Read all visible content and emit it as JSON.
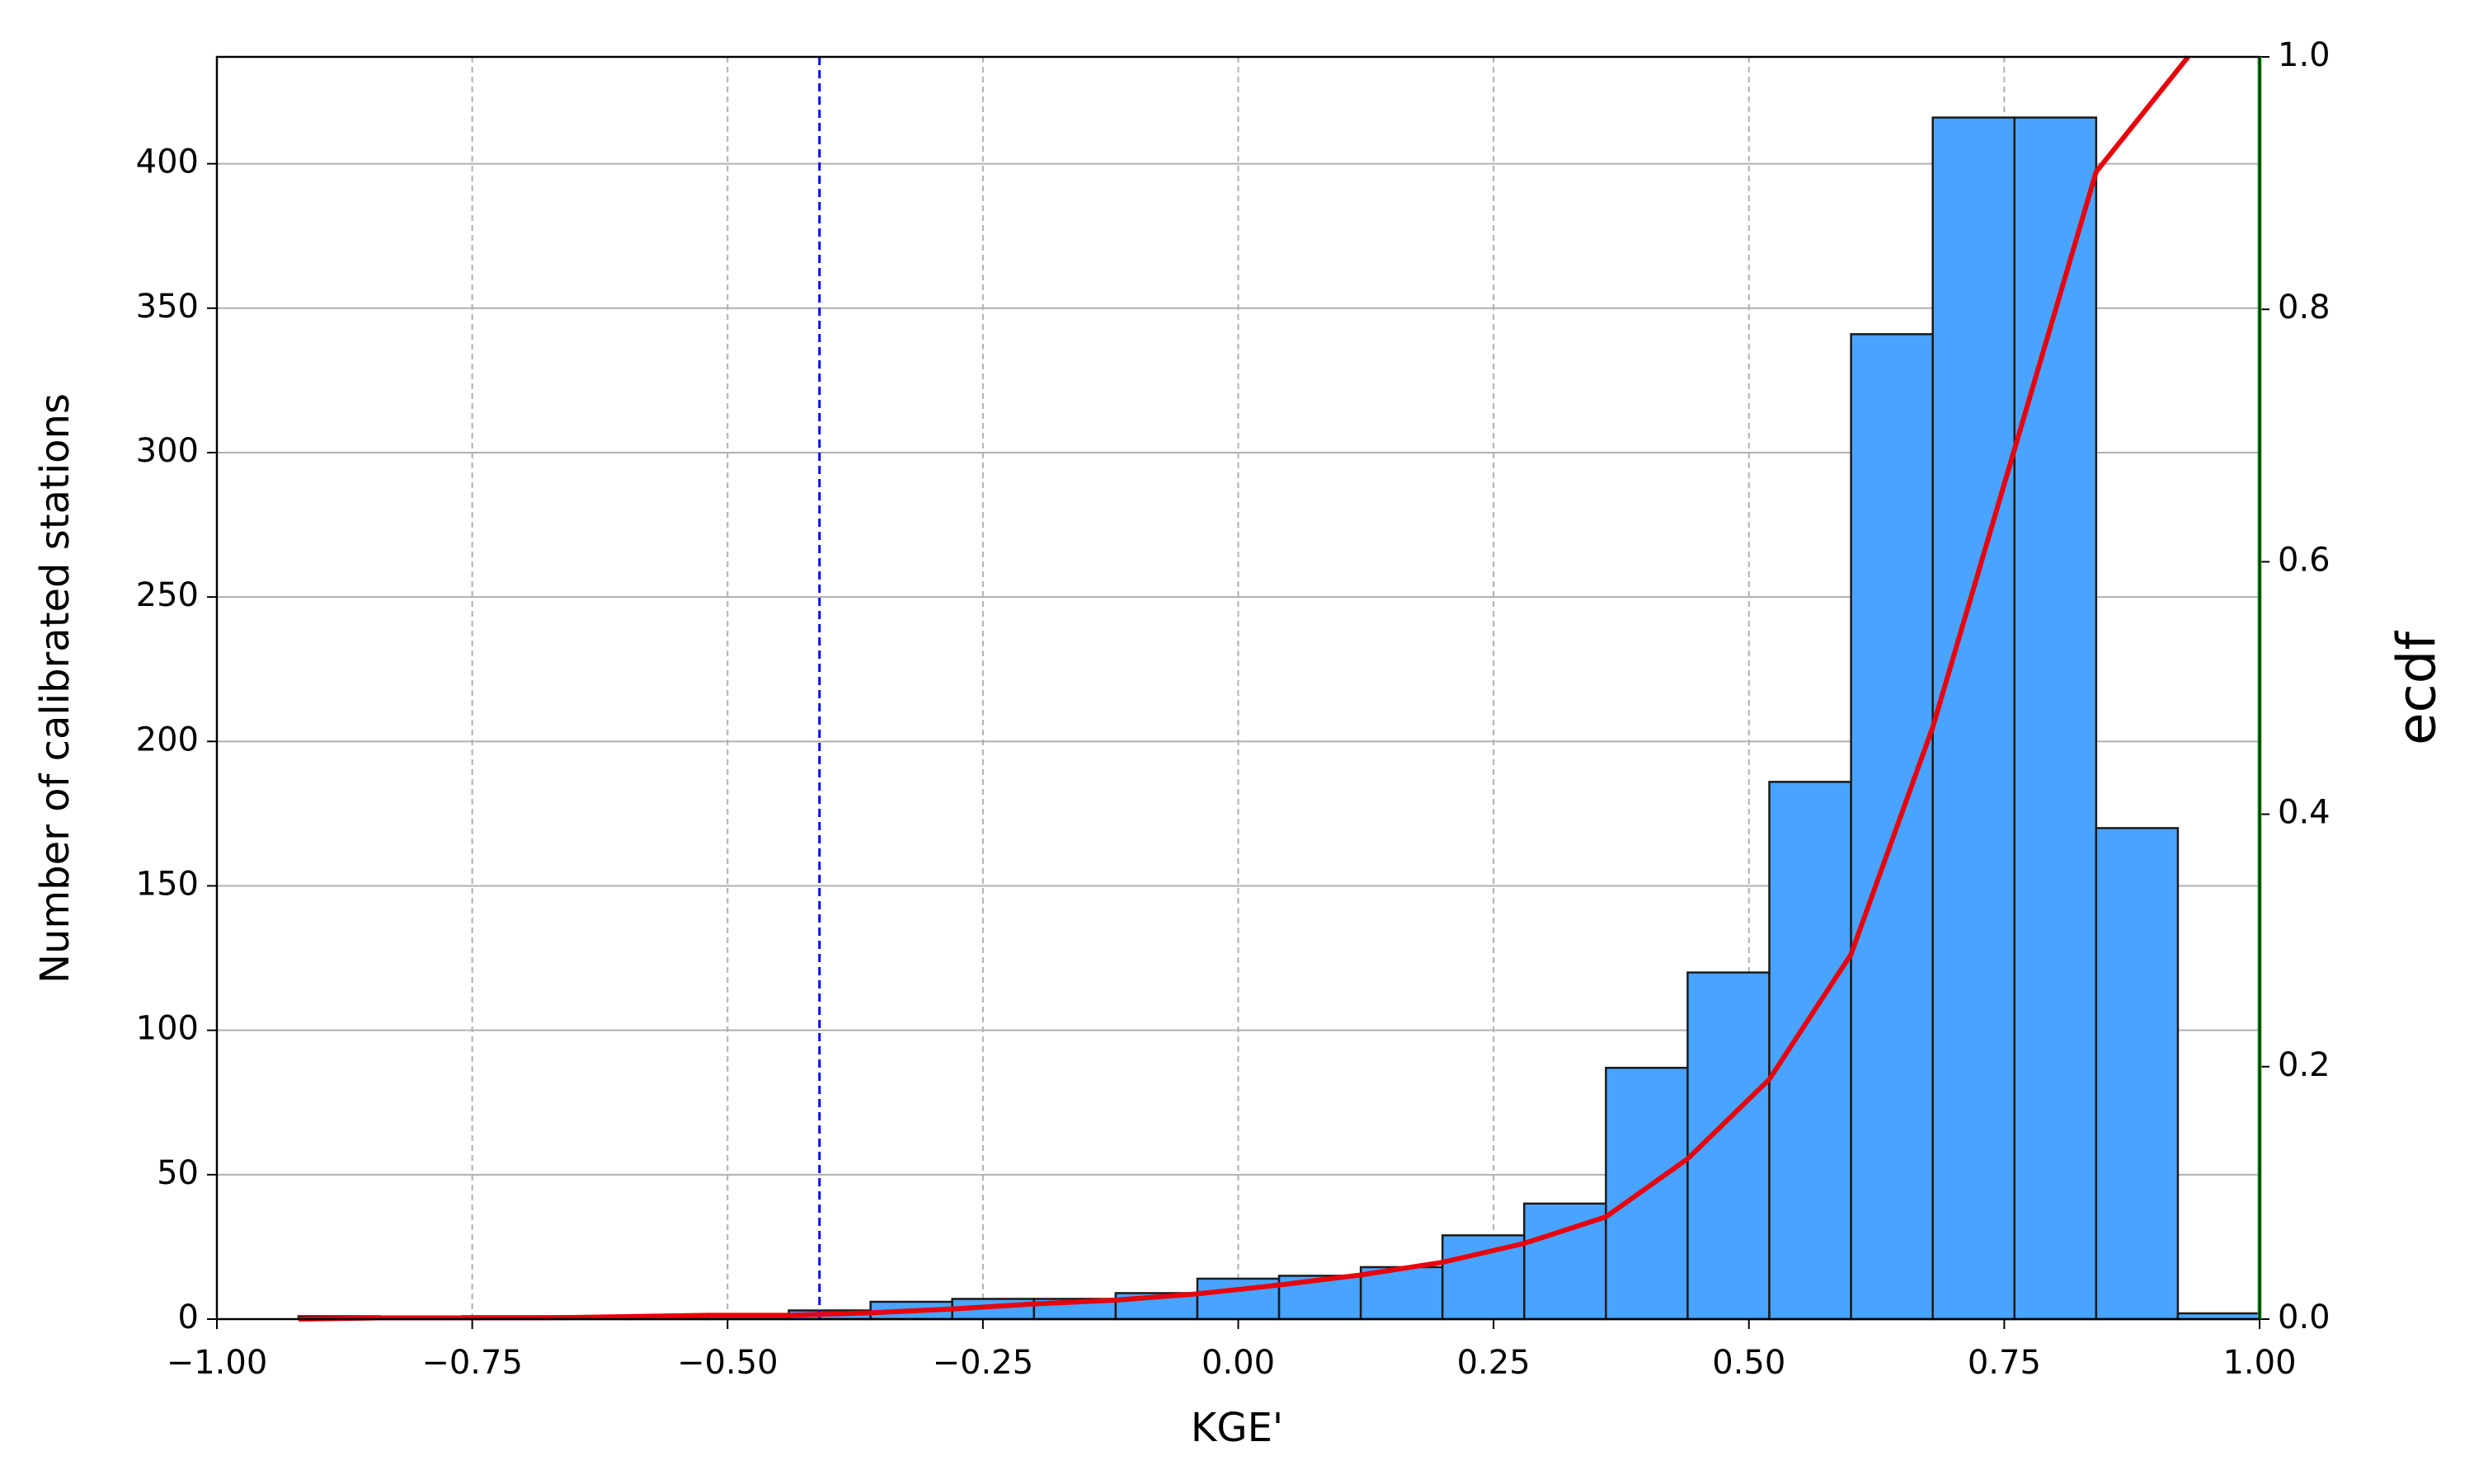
{
  "chart_data": {
    "type": "histogram",
    "x_label": "KGE'",
    "y_label": "Number of calibrated stations",
    "y2_label": "ecdf",
    "bins": [
      -0.92,
      -0.84,
      -0.76,
      -0.68,
      -0.6,
      -0.52,
      -0.44,
      -0.36,
      -0.28,
      -0.2,
      -0.12,
      -0.04,
      0.04,
      0.12,
      0.2,
      0.28,
      0.36,
      0.44,
      0.52,
      0.6,
      0.68,
      0.76,
      0.84,
      0.92,
      1.0
    ],
    "counts": [
      1,
      0,
      1,
      1,
      1,
      1,
      3,
      6,
      7,
      7,
      9,
      14,
      15,
      18,
      29,
      40,
      87,
      120,
      186,
      341,
      416,
      416,
      170,
      2
    ],
    "color": "#49a4ff",
    "ecdf": {
      "color": "#e8000b",
      "axis": "y2",
      "x": [
        -0.92,
        -0.84,
        -0.76,
        -0.68,
        -0.6,
        -0.52,
        -0.44,
        -0.36,
        -0.28,
        -0.2,
        -0.12,
        -0.04,
        0.04,
        0.12,
        0.2,
        0.28,
        0.36,
        0.44,
        0.52,
        0.6,
        0.68,
        0.76,
        0.84,
        0.93
      ],
      "values": [
        0,
        0.001,
        0.001,
        0.001,
        0.002,
        0.003,
        0.003,
        0.005,
        0.008,
        0.012,
        0.015,
        0.02,
        0.027,
        0.035,
        0.045,
        0.06,
        0.081,
        0.127,
        0.19,
        0.289,
        0.469,
        0.689,
        0.909,
        1.0
      ]
    },
    "vlines": [
      {
        "x": -0.41,
        "color": "#0000ff",
        "dashed": true
      },
      {
        "x": 1.0,
        "color": "#00dd00",
        "dashed": false
      }
    ],
    "xlim": [
      -1,
      1
    ],
    "xticks": [
      {
        "value": -1,
        "label": "−1.00"
      },
      {
        "value": -0.75,
        "label": "−0.75"
      },
      {
        "value": -0.5,
        "label": "−0.50"
      },
      {
        "value": -0.25,
        "label": "−0.25"
      },
      {
        "value": 0,
        "label": "0.00"
      },
      {
        "value": 0.25,
        "label": "0.25"
      },
      {
        "value": 0.5,
        "label": "0.50"
      },
      {
        "value": 0.75,
        "label": "0.75"
      },
      {
        "value": 1,
        "label": "1.00"
      }
    ],
    "ylim": [
      0,
      437
    ],
    "yticks": [
      0,
      50,
      100,
      150,
      200,
      250,
      300,
      350,
      400
    ],
    "y2lim": [
      0,
      1
    ],
    "y2ticks": [
      {
        "value": 0,
        "label": "0.0"
      },
      0.2,
      0.4,
      0.6,
      0.8,
      {
        "value": 1,
        "label": "1.0"
      }
    ],
    "grid": true
  }
}
